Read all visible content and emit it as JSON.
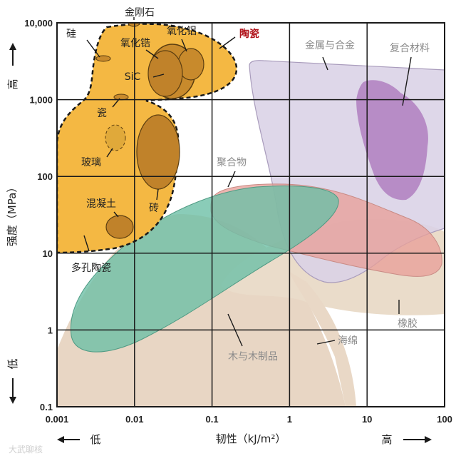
{
  "chart_data": {
    "type": "region-map",
    "title": "",
    "xlabel": "韧性（kJ/m²）",
    "ylabel": "强度（MPa）",
    "x_scale": "log",
    "y_scale": "log",
    "xlim": [
      0.001,
      100
    ],
    "ylim": [
      0.1,
      10000
    ],
    "x_ticks": [
      "0.001",
      "0.01",
      "0.1",
      "1",
      "10",
      "100"
    ],
    "y_ticks": [
      "0.1",
      "1",
      "10",
      "100",
      "1,000",
      "10,000"
    ],
    "grid": true,
    "x_low_label": "低",
    "x_high_label": "高",
    "y_low_label": "低",
    "y_high_label": "高",
    "regions": [
      {
        "name": "木与木制品",
        "color": "#e8d6c4",
        "x_range": [
          0.001,
          5
        ],
        "y_range": [
          0.1,
          50
        ]
      },
      {
        "name": "海绵",
        "color": "#e8d6c4",
        "x_range": [
          0.1,
          5
        ],
        "y_range": [
          0.1,
          10
        ]
      },
      {
        "name": "橡胶",
        "color": "#eadcca",
        "x_range": [
          0.6,
          100
        ],
        "y_range": [
          2,
          30
        ]
      },
      {
        "name": "金属与合金",
        "color": "#d9d2e6",
        "x_range": [
          0.15,
          100
        ],
        "y_range": [
          3,
          4000
        ]
      },
      {
        "name": "复合材料",
        "color": "#b07fbf",
        "x_range": [
          4,
          40
        ],
        "y_range": [
          60,
          1500
        ]
      },
      {
        "name": "聚合物",
        "color": "#e8a09a",
        "x_range": [
          0.1,
          60
        ],
        "y_range": [
          7,
          80
        ]
      },
      {
        "name": "陶瓷",
        "color": "#f4b843",
        "x_range": [
          0.001,
          0.3
        ],
        "y_range": [
          10,
          10000
        ]
      }
    ],
    "ceramic_subclasses": [
      "金刚石",
      "硅",
      "氧化锆",
      "氧化铝",
      "SiC",
      "瓷",
      "玻璃",
      "砖",
      "混凝土",
      "多孔陶瓷"
    ]
  },
  "watermark": "大武聊核"
}
